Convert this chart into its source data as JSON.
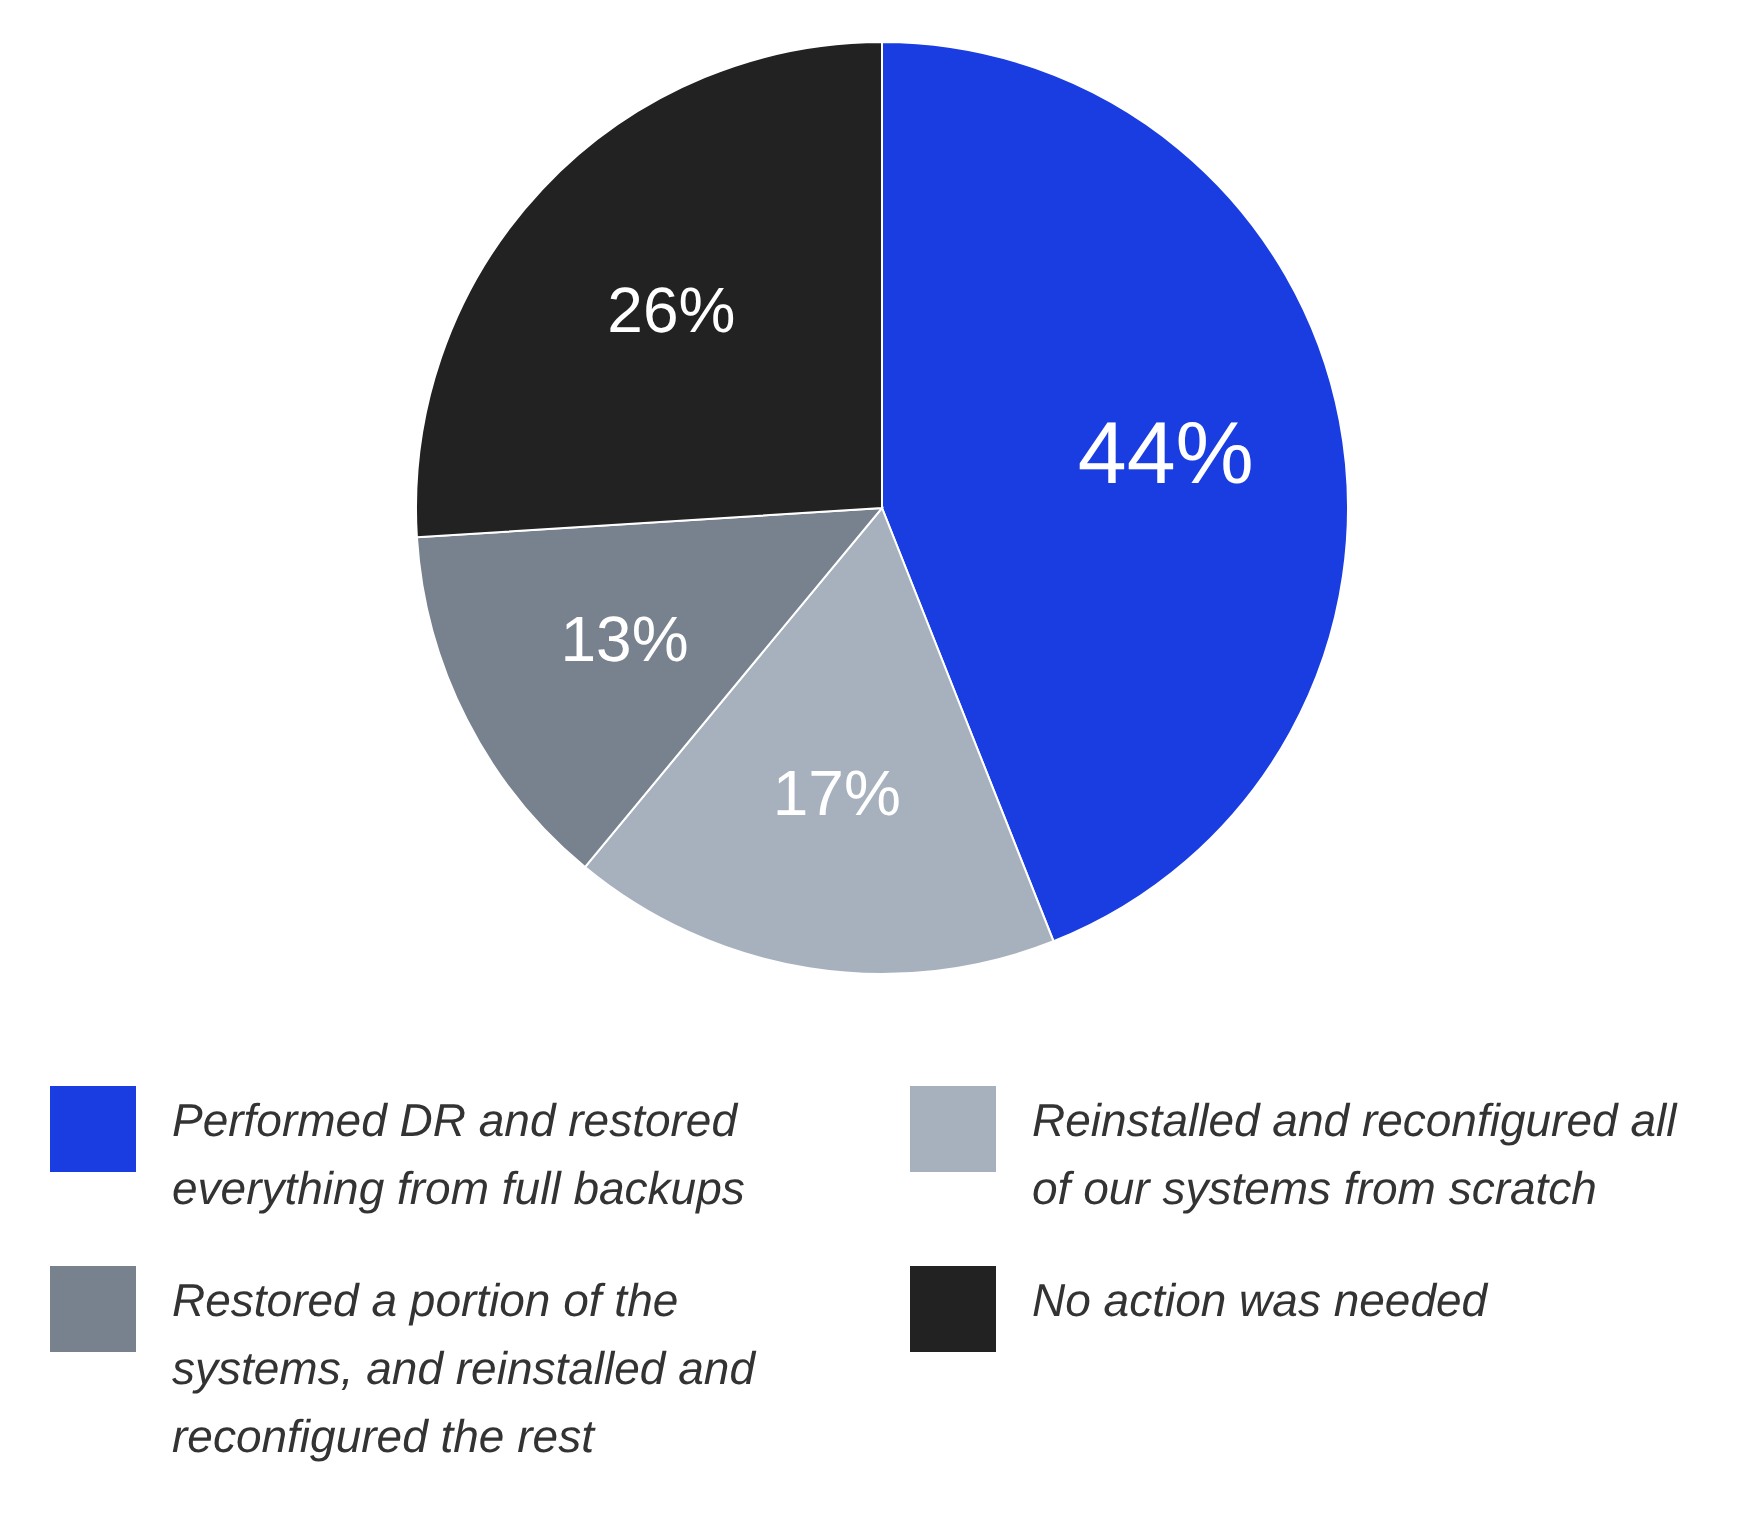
{
  "chart_data": {
    "type": "pie",
    "categories": [
      "Performed DR and restored everything from full backups",
      "Reinstalled and reconfigured all of our systems from scratch",
      "Restored a portion of the systems, and reinstalled and reconfigured the rest",
      "No action was needed"
    ],
    "values": [
      44,
      17,
      13,
      26
    ],
    "colors": [
      "#1a3de2",
      "#a7b1be",
      "#78818e",
      "#222222"
    ],
    "value_labels": [
      "44%",
      "17%",
      "13%",
      "26%"
    ],
    "legend": "bottom"
  }
}
